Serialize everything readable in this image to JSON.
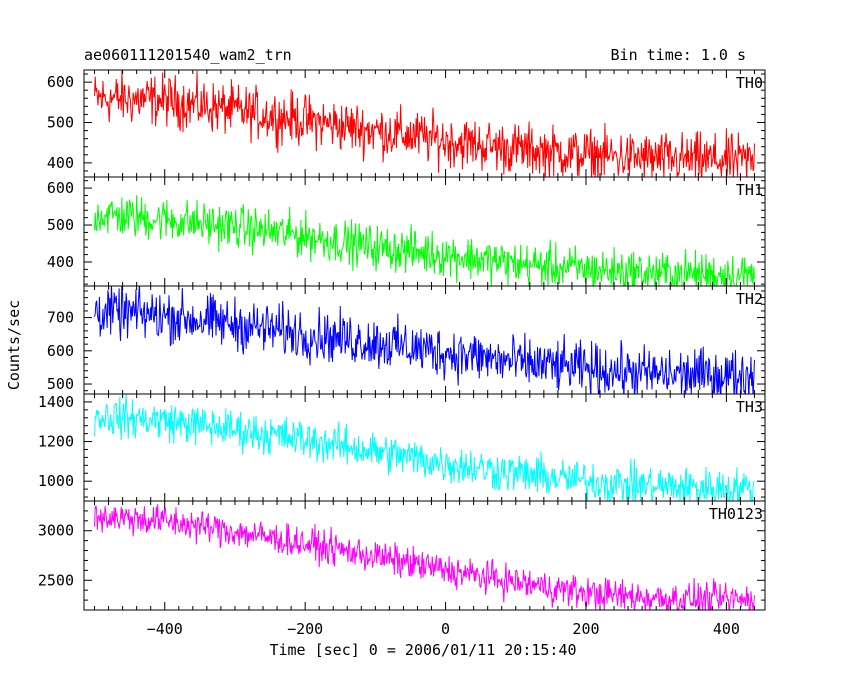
{
  "header": {
    "title": "ae060111201540_wam2_trn",
    "bin_time": "Bin time: 1.0 s"
  },
  "chart_data": {
    "type": "line",
    "title": "ae060111201540_wam2_trn",
    "subtitle": "Bin time: 1.0 s",
    "xlabel": "Time [sec] 0 = 2006/01/11 20:15:40",
    "ylabel": "Counts/sec",
    "xlim": [
      -515,
      455
    ],
    "x_ticks": [
      -400,
      -200,
      0,
      200,
      400
    ],
    "x_tick_labels": [
      "−400",
      "−200",
      "0",
      "200",
      "400"
    ],
    "x_range": [
      -500,
      440
    ],
    "x_step": 1,
    "grid": false,
    "panels": [
      {
        "name": "TH0",
        "color": "#ff0000",
        "ylim": [
          365,
          630
        ],
        "y_ticks": [
          400,
          500,
          600
        ],
        "trend": [
          [
            -500,
            560
          ],
          [
            -400,
            555
          ],
          [
            -300,
            530
          ],
          [
            -200,
            505
          ],
          [
            -100,
            480
          ],
          [
            0,
            455
          ],
          [
            100,
            435
          ],
          [
            200,
            420
          ],
          [
            300,
            410
          ],
          [
            440,
            405
          ]
        ],
        "noise_amplitude": 70
      },
      {
        "name": "TH1",
        "color": "#00ff00",
        "ylim": [
          335,
          630
        ],
        "y_ticks": [
          400,
          500,
          600
        ],
        "trend": [
          [
            -500,
            530
          ],
          [
            -400,
            515
          ],
          [
            -300,
            495
          ],
          [
            -200,
            470
          ],
          [
            -100,
            440
          ],
          [
            0,
            420
          ],
          [
            100,
            395
          ],
          [
            200,
            380
          ],
          [
            300,
            370
          ],
          [
            440,
            365
          ]
        ],
        "noise_amplitude": 65
      },
      {
        "name": "TH2",
        "color": "#0000ff",
        "ylim": [
          470,
          795
        ],
        "y_ticks": [
          500,
          600,
          700
        ],
        "trend": [
          [
            -500,
            720
          ],
          [
            -400,
            705
          ],
          [
            -300,
            680
          ],
          [
            -200,
            650
          ],
          [
            -100,
            625
          ],
          [
            0,
            595
          ],
          [
            100,
            565
          ],
          [
            200,
            545
          ],
          [
            300,
            530
          ],
          [
            440,
            525
          ]
        ],
        "noise_amplitude": 85
      },
      {
        "name": "TH3",
        "color": "#00ffff",
        "ylim": [
          900,
          1440
        ],
        "y_ticks": [
          1000,
          1200,
          1400
        ],
        "trend": [
          [
            -500,
            1330
          ],
          [
            -400,
            1305
          ],
          [
            -300,
            1260
          ],
          [
            -200,
            1210
          ],
          [
            -100,
            1150
          ],
          [
            0,
            1090
          ],
          [
            100,
            1040
          ],
          [
            200,
            1000
          ],
          [
            300,
            975
          ],
          [
            440,
            960
          ]
        ],
        "noise_amplitude": 110
      },
      {
        "name": "TH0123",
        "color": "#ff00ff",
        "ylim": [
          2200,
          3300
        ],
        "y_ticks": [
          2500,
          3000
        ],
        "trend": [
          [
            -500,
            3150
          ],
          [
            -400,
            3100
          ],
          [
            -300,
            2990
          ],
          [
            -200,
            2870
          ],
          [
            -100,
            2740
          ],
          [
            0,
            2600
          ],
          [
            100,
            2480
          ],
          [
            200,
            2370
          ],
          [
            300,
            2320
          ],
          [
            440,
            2300
          ]
        ],
        "noise_amplitude": 180
      }
    ]
  }
}
